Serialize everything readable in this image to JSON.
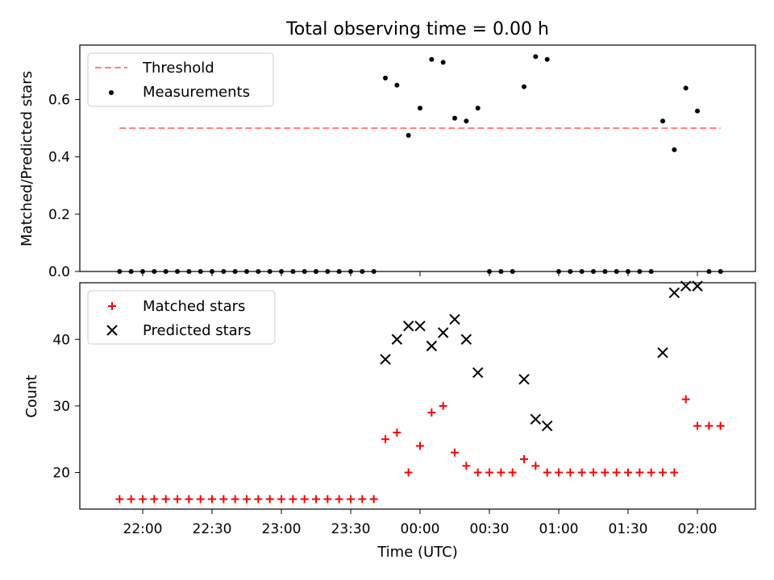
{
  "title": "Total observing time = 0.00 h",
  "xlabel": "Time (UTC)",
  "x_ticks": [
    "22:00",
    "22:30",
    "23:00",
    "23:30",
    "00:00",
    "00:30",
    "01:00",
    "01:30",
    "02:00"
  ],
  "colors": {
    "threshold": "#ff7f7f",
    "measurements": "#000000",
    "matched": "#ff0000",
    "predicted": "#000000"
  },
  "chart_data": [
    {
      "type": "scatter",
      "ylabel": "Matched/Predicted stars",
      "ylim": [
        0,
        0.79
      ],
      "y_ticks": [
        "0.0",
        "0.2",
        "0.4",
        "0.6"
      ],
      "legend": {
        "placement": "top-left",
        "entries": [
          "Threshold",
          "Measurements"
        ]
      },
      "series": [
        {
          "name": "Threshold",
          "kind": "line",
          "style": "dashed",
          "x": [
            "21:50",
            "02:10"
          ],
          "y": [
            0.5,
            0.5
          ]
        },
        {
          "name": "Measurements",
          "kind": "points",
          "x": [
            "21:50",
            "21:55",
            "22:00",
            "22:05",
            "22:10",
            "22:15",
            "22:20",
            "22:25",
            "22:30",
            "22:35",
            "22:40",
            "22:45",
            "22:50",
            "22:55",
            "23:00",
            "23:05",
            "23:10",
            "23:15",
            "23:20",
            "23:25",
            "23:30",
            "23:35",
            "23:40",
            "23:45",
            "23:50",
            "23:55",
            "00:00",
            "00:05",
            "00:10",
            "00:15",
            "00:20",
            "00:25",
            "00:30",
            "00:35",
            "00:40",
            "00:45",
            "00:50",
            "00:55",
            "01:00",
            "01:05",
            "01:10",
            "01:15",
            "01:20",
            "01:25",
            "01:30",
            "01:35",
            "01:40",
            "01:45",
            "01:50",
            "01:55",
            "02:00",
            "02:05",
            "02:10"
          ],
          "y": [
            0,
            0,
            0,
            0,
            0,
            0,
            0,
            0,
            0,
            0,
            0,
            0,
            0,
            0,
            0,
            0,
            0,
            0,
            0,
            0,
            0,
            0,
            0,
            0.675,
            0.65,
            0.475,
            0.57,
            0.74,
            0.73,
            0.535,
            0.525,
            0.57,
            0,
            0,
            0,
            0.645,
            0.75,
            0.74,
            0,
            0,
            0,
            0,
            0,
            0,
            0,
            0,
            0,
            0.525,
            0.425,
            0.64,
            0.56,
            0,
            0
          ]
        }
      ]
    },
    {
      "type": "scatter",
      "ylabel": "Count",
      "ylim": [
        14.5,
        48.5
      ],
      "y_ticks": [
        "20",
        "30",
        "40"
      ],
      "legend": {
        "placement": "top-left",
        "entries": [
          "Matched stars",
          "Predicted stars"
        ]
      },
      "series": [
        {
          "name": "Matched stars",
          "marker": "+",
          "x": [
            "21:50",
            "21:55",
            "22:00",
            "22:05",
            "22:10",
            "22:15",
            "22:20",
            "22:25",
            "22:30",
            "22:35",
            "22:40",
            "22:45",
            "22:50",
            "22:55",
            "23:00",
            "23:05",
            "23:10",
            "23:15",
            "23:20",
            "23:25",
            "23:30",
            "23:35",
            "23:40",
            "23:45",
            "23:50",
            "23:55",
            "00:00",
            "00:05",
            "00:10",
            "00:15",
            "00:20",
            "00:25",
            "00:30",
            "00:35",
            "00:40",
            "00:45",
            "00:50",
            "00:55",
            "01:00",
            "01:05",
            "01:10",
            "01:15",
            "01:20",
            "01:25",
            "01:30",
            "01:35",
            "01:40",
            "01:45",
            "01:50",
            "01:55",
            "02:00",
            "02:05",
            "02:10"
          ],
          "y": [
            16,
            16,
            16,
            16,
            16,
            16,
            16,
            16,
            16,
            16,
            16,
            16,
            16,
            16,
            16,
            16,
            16,
            16,
            16,
            16,
            16,
            16,
            16,
            25,
            26,
            20,
            24,
            29,
            30,
            23,
            21,
            20,
            20,
            20,
            20,
            22,
            21,
            20,
            20,
            20,
            20,
            20,
            20,
            20,
            20,
            20,
            20,
            20,
            20,
            31,
            27,
            27,
            27
          ]
        },
        {
          "name": "Predicted stars",
          "marker": "x",
          "x": [
            "23:45",
            "23:50",
            "23:55",
            "00:00",
            "00:05",
            "00:10",
            "00:15",
            "00:20",
            "00:25",
            "00:45",
            "00:50",
            "00:55",
            "01:45",
            "01:50",
            "01:55",
            "02:00"
          ],
          "y": [
            37,
            40,
            42,
            42,
            39,
            41,
            43,
            40,
            35,
            34,
            28,
            27,
            38,
            47,
            48,
            48
          ]
        }
      ]
    }
  ]
}
